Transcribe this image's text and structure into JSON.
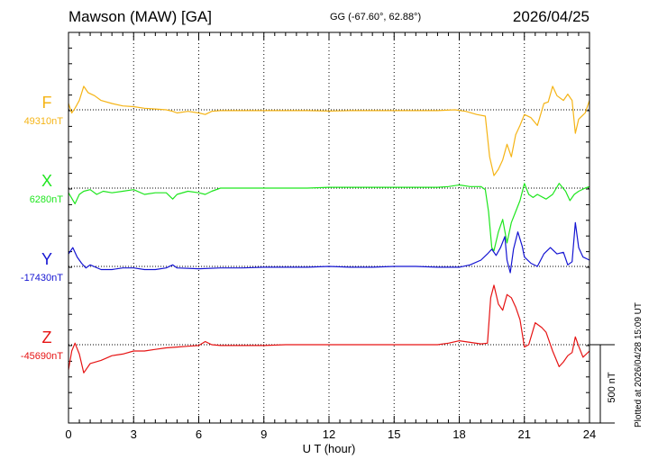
{
  "header": {
    "title": "Mawson (MAW)  [GA]",
    "coords": "GG (-67.60°,  62.88°)",
    "date": "2026/04/25",
    "plotted": "Plotted at 2026/04/28 15:09 UT"
  },
  "chart_data": {
    "type": "line",
    "title": "Mawson (MAW)  [GA]",
    "xlabel": "U T (hour)",
    "ylabel": "",
    "xlim": [
      0,
      24
    ],
    "xticks": [
      0,
      3,
      6,
      9,
      12,
      15,
      18,
      21,
      24
    ],
    "scale_bar_label": "500 nT",
    "scale_bar_nT": 500,
    "units_per_panel_nT": 500,
    "series": [
      {
        "name": "F",
        "baseline_label": "49310nT",
        "color": "#f5b416",
        "points": [
          [
            0,
            40
          ],
          [
            0.15,
            -20
          ],
          [
            0.3,
            10
          ],
          [
            0.5,
            60
          ],
          [
            0.7,
            150
          ],
          [
            0.9,
            110
          ],
          [
            1.2,
            90
          ],
          [
            1.5,
            60
          ],
          [
            2,
            40
          ],
          [
            2.5,
            25
          ],
          [
            3,
            20
          ],
          [
            3.5,
            10
          ],
          [
            4,
            5
          ],
          [
            4.5,
            0
          ],
          [
            4.8,
            -10
          ],
          [
            5,
            -20
          ],
          [
            5.5,
            -10
          ],
          [
            6,
            -20
          ],
          [
            6.3,
            -30
          ],
          [
            6.6,
            -10
          ],
          [
            7,
            -5
          ],
          [
            8,
            -5
          ],
          [
            9,
            -5
          ],
          [
            10,
            -5
          ],
          [
            11,
            -5
          ],
          [
            12,
            -8
          ],
          [
            13,
            -5
          ],
          [
            14,
            -5
          ],
          [
            15,
            -5
          ],
          [
            16,
            -5
          ],
          [
            17,
            -5
          ],
          [
            17.8,
            0
          ],
          [
            18.3,
            -10
          ],
          [
            18.8,
            -30
          ],
          [
            19.2,
            -40
          ],
          [
            19.4,
            -300
          ],
          [
            19.6,
            -420
          ],
          [
            19.8,
            -380
          ],
          [
            20,
            -320
          ],
          [
            20.2,
            -220
          ],
          [
            20.4,
            -300
          ],
          [
            20.6,
            -160
          ],
          [
            20.8,
            -100
          ],
          [
            21,
            -30
          ],
          [
            21.3,
            -50
          ],
          [
            21.6,
            -100
          ],
          [
            21.9,
            40
          ],
          [
            22.1,
            50
          ],
          [
            22.3,
            150
          ],
          [
            22.5,
            90
          ],
          [
            22.8,
            60
          ],
          [
            23,
            100
          ],
          [
            23.2,
            60
          ],
          [
            23.35,
            -150
          ],
          [
            23.5,
            -60
          ],
          [
            23.8,
            -20
          ],
          [
            24,
            60
          ]
        ]
      },
      {
        "name": "X",
        "baseline_label": "6280nT",
        "color": "#1ee61e",
        "points": [
          [
            0,
            -30
          ],
          [
            0.3,
            -100
          ],
          [
            0.5,
            -40
          ],
          [
            0.7,
            -20
          ],
          [
            1,
            -10
          ],
          [
            1.3,
            -40
          ],
          [
            1.6,
            -20
          ],
          [
            2,
            -30
          ],
          [
            2.5,
            -20
          ],
          [
            3,
            -10
          ],
          [
            3.5,
            -40
          ],
          [
            4,
            -30
          ],
          [
            4.5,
            -30
          ],
          [
            4.8,
            -70
          ],
          [
            5,
            -40
          ],
          [
            5.5,
            -20
          ],
          [
            6,
            -30
          ],
          [
            6.3,
            -40
          ],
          [
            6.6,
            -20
          ],
          [
            7,
            0
          ],
          [
            8,
            0
          ],
          [
            9,
            0
          ],
          [
            10,
            0
          ],
          [
            11,
            0
          ],
          [
            12,
            5
          ],
          [
            13,
            5
          ],
          [
            14,
            5
          ],
          [
            15,
            5
          ],
          [
            16,
            5
          ],
          [
            17,
            5
          ],
          [
            17.5,
            10
          ],
          [
            18,
            20
          ],
          [
            18.5,
            10
          ],
          [
            19,
            10
          ],
          [
            19.2,
            -10
          ],
          [
            19.35,
            -150
          ],
          [
            19.5,
            -380
          ],
          [
            19.6,
            -400
          ],
          [
            19.8,
            -280
          ],
          [
            20,
            -200
          ],
          [
            20.2,
            -350
          ],
          [
            20.4,
            -220
          ],
          [
            20.6,
            -150
          ],
          [
            20.8,
            -80
          ],
          [
            21,
            30
          ],
          [
            21.2,
            -40
          ],
          [
            21.4,
            -60
          ],
          [
            21.6,
            -40
          ],
          [
            22,
            -70
          ],
          [
            22.3,
            -40
          ],
          [
            22.6,
            30
          ],
          [
            22.9,
            -20
          ],
          [
            23.1,
            -80
          ],
          [
            23.3,
            -40
          ],
          [
            23.5,
            -20
          ],
          [
            23.8,
            0
          ],
          [
            24,
            10
          ]
        ]
      },
      {
        "name": "Y",
        "baseline_label": "-17430nT",
        "color": "#1414d2",
        "points": [
          [
            0,
            80
          ],
          [
            0.2,
            120
          ],
          [
            0.4,
            60
          ],
          [
            0.6,
            20
          ],
          [
            0.8,
            -10
          ],
          [
            1,
            10
          ],
          [
            1.5,
            -20
          ],
          [
            2,
            -20
          ],
          [
            2.5,
            -10
          ],
          [
            3,
            -10
          ],
          [
            3.5,
            -20
          ],
          [
            4,
            -20
          ],
          [
            4.5,
            -10
          ],
          [
            4.8,
            10
          ],
          [
            5,
            -10
          ],
          [
            6,
            -15
          ],
          [
            7,
            -10
          ],
          [
            8,
            -10
          ],
          [
            9,
            -5
          ],
          [
            10,
            -5
          ],
          [
            11,
            -5
          ],
          [
            12,
            0
          ],
          [
            13,
            -5
          ],
          [
            14,
            -5
          ],
          [
            15,
            0
          ],
          [
            16,
            0
          ],
          [
            17,
            -5
          ],
          [
            17.5,
            -5
          ],
          [
            18,
            -5
          ],
          [
            18.5,
            10
          ],
          [
            19,
            40
          ],
          [
            19.3,
            80
          ],
          [
            19.5,
            110
          ],
          [
            19.7,
            70
          ],
          [
            19.9,
            120
          ],
          [
            20.1,
            190
          ],
          [
            20.2,
            40
          ],
          [
            20.35,
            -40
          ],
          [
            20.5,
            110
          ],
          [
            20.7,
            220
          ],
          [
            20.9,
            130
          ],
          [
            21,
            60
          ],
          [
            21.3,
            20
          ],
          [
            21.6,
            0
          ],
          [
            21.9,
            80
          ],
          [
            22.2,
            120
          ],
          [
            22.5,
            80
          ],
          [
            22.8,
            90
          ],
          [
            23,
            10
          ],
          [
            23.2,
            30
          ],
          [
            23.35,
            280
          ],
          [
            23.5,
            120
          ],
          [
            23.7,
            60
          ],
          [
            24,
            40
          ]
        ]
      },
      {
        "name": "Z",
        "baseline_label": "-45690nT",
        "color": "#e61414",
        "points": [
          [
            0,
            -160
          ],
          [
            0.15,
            -40
          ],
          [
            0.3,
            10
          ],
          [
            0.5,
            -60
          ],
          [
            0.7,
            -180
          ],
          [
            1,
            -120
          ],
          [
            1.5,
            -100
          ],
          [
            2,
            -70
          ],
          [
            2.5,
            -60
          ],
          [
            3,
            -40
          ],
          [
            3.5,
            -40
          ],
          [
            4,
            -30
          ],
          [
            4.5,
            -20
          ],
          [
            5,
            -15
          ],
          [
            5.5,
            -10
          ],
          [
            6,
            -5
          ],
          [
            6.3,
            20
          ],
          [
            6.6,
            0
          ],
          [
            7,
            -5
          ],
          [
            8,
            -5
          ],
          [
            9,
            -5
          ],
          [
            10,
            0
          ],
          [
            11,
            0
          ],
          [
            12,
            0
          ],
          [
            13,
            0
          ],
          [
            14,
            0
          ],
          [
            15,
            0
          ],
          [
            16,
            0
          ],
          [
            17,
            0
          ],
          [
            17.5,
            10
          ],
          [
            18,
            25
          ],
          [
            18.5,
            15
          ],
          [
            19,
            5
          ],
          [
            19.3,
            10
          ],
          [
            19.45,
            300
          ],
          [
            19.6,
            380
          ],
          [
            19.8,
            260
          ],
          [
            20,
            220
          ],
          [
            20.2,
            320
          ],
          [
            20.4,
            300
          ],
          [
            20.6,
            240
          ],
          [
            20.8,
            160
          ],
          [
            21,
            -15
          ],
          [
            21.2,
            0
          ],
          [
            21.5,
            140
          ],
          [
            21.8,
            110
          ],
          [
            22,
            80
          ],
          [
            22.3,
            -40
          ],
          [
            22.6,
            -140
          ],
          [
            22.8,
            -110
          ],
          [
            23,
            -70
          ],
          [
            23.2,
            -50
          ],
          [
            23.35,
            50
          ],
          [
            23.5,
            -10
          ],
          [
            23.7,
            -80
          ],
          [
            24,
            -40
          ]
        ]
      }
    ]
  }
}
